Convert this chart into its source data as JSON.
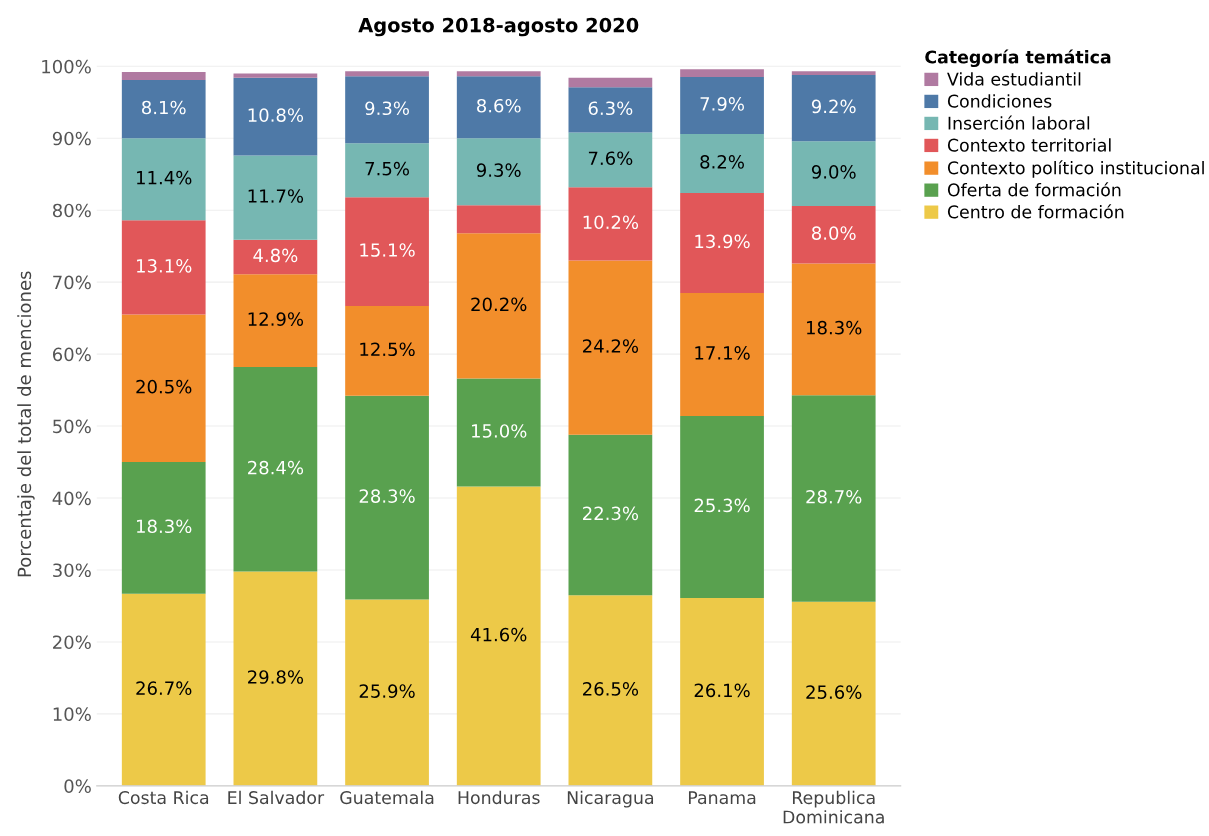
{
  "chart_data": {
    "type": "bar",
    "stacked": true,
    "title": "Agosto 2018-agosto 2020",
    "ylabel": "Porcentaje del total de menciones",
    "legend_title": "Categoría temática",
    "legend": "top right",
    "grid": "y",
    "categories": [
      "Costa Rica",
      "El Salvador",
      "Guatemala",
      "Honduras",
      "Nicaragua",
      "Panama",
      "Republica\nDominicana"
    ],
    "ylim": [
      0,
      100.5
    ],
    "yticks": [
      {
        "value": 0,
        "label": "0%"
      },
      {
        "value": 10,
        "label": "10%"
      },
      {
        "value": 20,
        "label": "20%"
      },
      {
        "value": 30,
        "label": "30%"
      },
      {
        "value": 40,
        "label": "40%"
      },
      {
        "value": 50,
        "label": "50%"
      },
      {
        "value": 60,
        "label": "60%"
      },
      {
        "value": 70,
        "label": "70%"
      },
      {
        "value": 80,
        "label": "80%"
      },
      {
        "value": 90,
        "label": "90%"
      },
      {
        "value": 100,
        "label": "100%"
      }
    ],
    "series": [
      {
        "name": "Centro de formación",
        "color": "#edc948",
        "values": [
          26.7,
          29.8,
          25.9,
          41.6,
          26.5,
          26.1,
          25.6
        ],
        "value_labels": [
          "26.7%",
          "29.8%",
          "25.9%",
          "41.6%",
          "26.5%",
          "26.1%",
          "25.6%"
        ]
      },
      {
        "name": "Oferta de formación",
        "color": "#59a14f",
        "values": [
          18.3,
          28.4,
          28.3,
          15.0,
          22.3,
          25.3,
          28.7
        ],
        "value_labels": [
          "18.3%",
          "28.4%",
          "28.3%",
          "15.0%",
          "22.3%",
          "25.3%",
          "28.7%"
        ]
      },
      {
        "name": "Contexto político institucional",
        "color": "#f28e2b",
        "values": [
          20.5,
          12.9,
          12.5,
          20.2,
          24.2,
          17.1,
          18.3
        ],
        "value_labels": [
          "20.5%",
          "12.9%",
          "12.5%",
          "20.2%",
          "24.2%",
          "17.1%",
          "18.3%"
        ]
      },
      {
        "name": "Contexto territorial",
        "color": "#e15759",
        "values": [
          13.1,
          4.8,
          15.1,
          3.9,
          10.2,
          13.9,
          8.0
        ],
        "value_labels": [
          "13.1%",
          "4.8%",
          "15.1%",
          null,
          "10.2%",
          "13.9%",
          "8.0%"
        ]
      },
      {
        "name": "Inserción laboral",
        "color": "#76b7b2",
        "values": [
          11.4,
          11.7,
          7.5,
          9.3,
          7.6,
          8.2,
          9.0
        ],
        "value_labels": [
          "11.4%",
          "11.7%",
          "7.5%",
          "9.3%",
          "7.6%",
          "8.2%",
          "9.0%"
        ]
      },
      {
        "name": "Condiciones",
        "color": "#4e79a7",
        "values": [
          8.1,
          10.8,
          9.3,
          8.6,
          6.3,
          7.9,
          9.2
        ],
        "value_labels": [
          "8.1%",
          "10.8%",
          "9.3%",
          "8.6%",
          "6.3%",
          "7.9%",
          "9.2%"
        ]
      },
      {
        "name": "Vida estudiantil",
        "color": "#b07aa1",
        "values": [
          1.1,
          0.6,
          0.7,
          0.7,
          1.3,
          1.1,
          0.5
        ],
        "value_labels": [
          null,
          null,
          null,
          null,
          null,
          null,
          null
        ]
      }
    ]
  }
}
